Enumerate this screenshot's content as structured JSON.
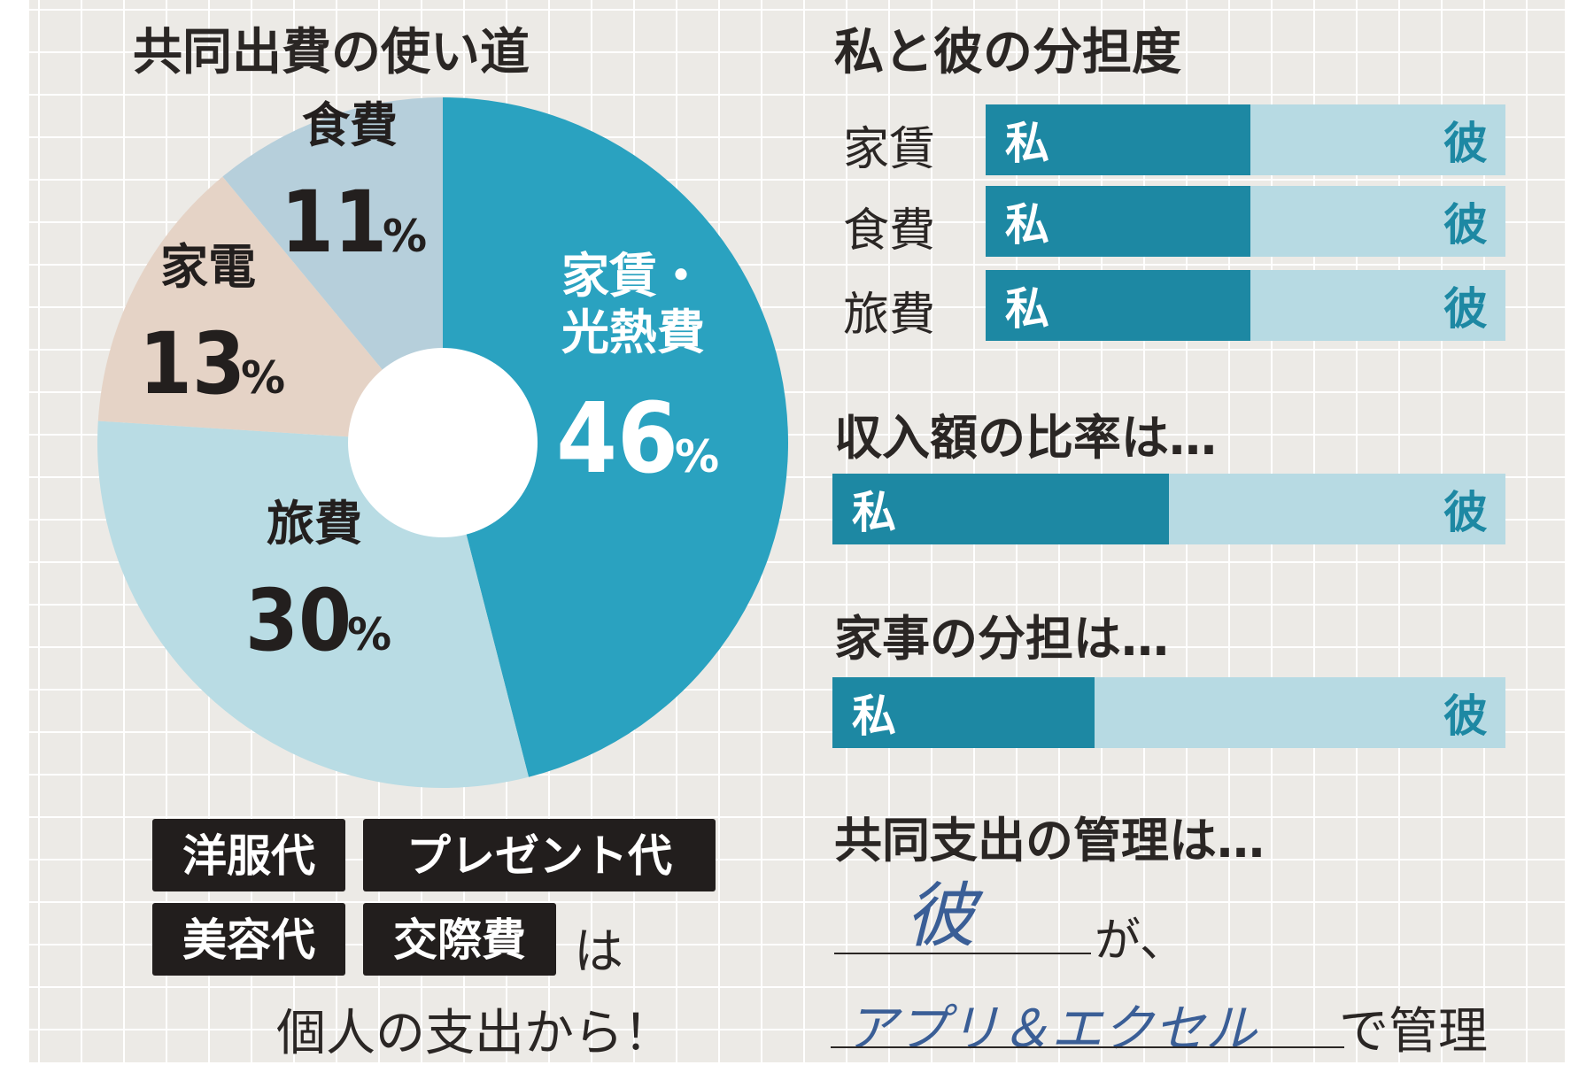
{
  "pie_section": {
    "title": "共同出費の使い道"
  },
  "share_section": {
    "title": "私と彼の分担度",
    "rows": [
      {
        "label": "家賃",
        "me_label": "私",
        "partner_label": "彼",
        "me_share": 0.51
      },
      {
        "label": "食費",
        "me_label": "私",
        "partner_label": "彼",
        "me_share": 0.51
      },
      {
        "label": "旅費",
        "me_label": "私",
        "partner_label": "彼",
        "me_share": 0.51
      }
    ]
  },
  "income_section": {
    "title": "収入額の比率は…",
    "me_label": "私",
    "partner_label": "彼",
    "me_share": 0.5
  },
  "housework_section": {
    "title": "家事の分担は…",
    "me_label": "私",
    "partner_label": "彼",
    "me_share": 0.39
  },
  "excluded": {
    "tags": [
      "洋服代",
      "プレゼント代",
      "美容代",
      "交際費"
    ],
    "suffix_ha": "は",
    "note": "個人の支出から！"
  },
  "management": {
    "title": "共同支出の管理は…",
    "who_handwritten": "彼",
    "who_suffix": "が、",
    "how_handwritten": "アプリ＆エクセル",
    "how_suffix": "で管理"
  },
  "colors": {
    "me": "#1d88a3",
    "partner": "#b7dae3",
    "text": "#2a2624"
  },
  "chart_data": {
    "type": "pie",
    "donut": true,
    "title": "共同出費の使い道",
    "slices": [
      {
        "label_lines": [
          "家賃・",
          "光熱費"
        ],
        "value": 46,
        "display": "46",
        "unit": "%",
        "color": "#2aa2c0",
        "label_color": "#ffffff"
      },
      {
        "label_lines": [
          "旅費"
        ],
        "value": 30,
        "display": "30",
        "unit": "%",
        "color": "#b9dce4",
        "label_color": "#231f1e"
      },
      {
        "label_lines": [
          "家電"
        ],
        "value": 13,
        "display": "13",
        "unit": "%",
        "color": "#e5d3c6",
        "label_color": "#231f1e"
      },
      {
        "label_lines": [
          "食費"
        ],
        "value": 11,
        "display": "11",
        "unit": "%",
        "color": "#b6cfdb",
        "label_color": "#231f1e"
      }
    ]
  }
}
